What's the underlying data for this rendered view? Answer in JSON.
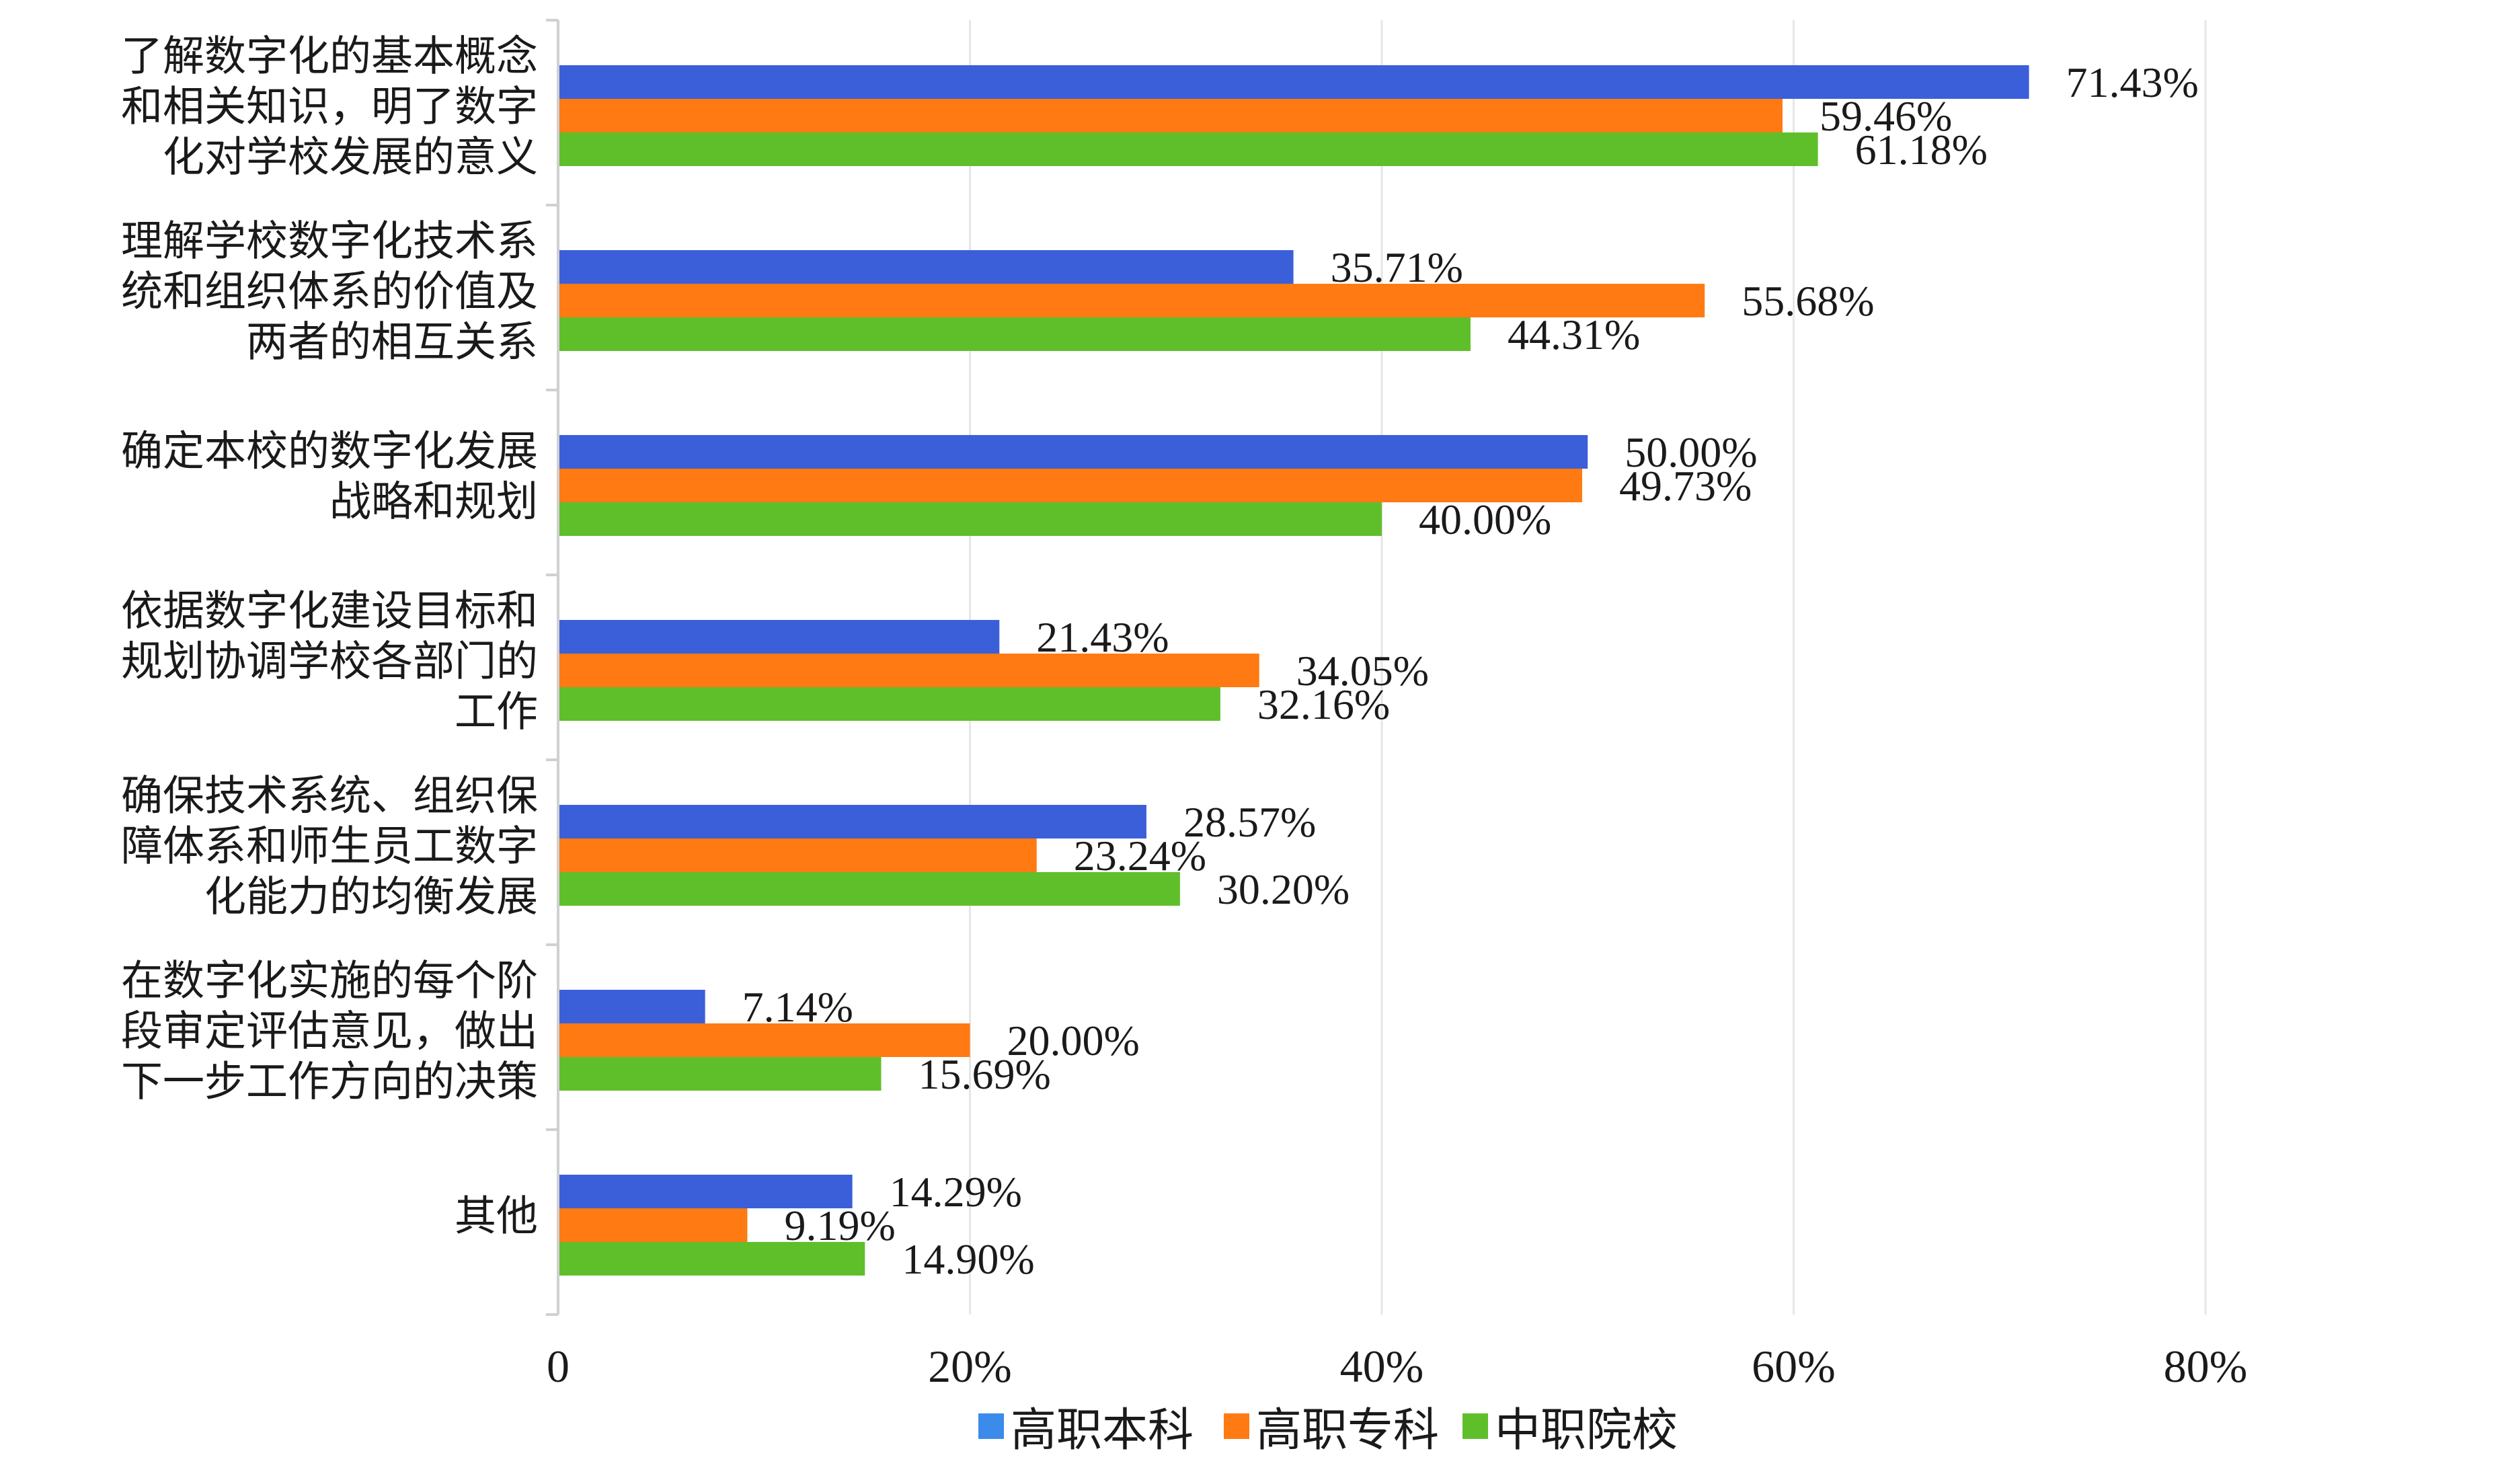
{
  "chart_data": {
    "type": "bar",
    "orientation": "horizontal",
    "categories": [
      [
        "了解数字化的基本概念",
        "和相关知识，明了数字",
        "化对学校发展的意义"
      ],
      [
        "理解学校数字化技术系",
        "统和组织体系的价值及",
        "两者的相互关系"
      ],
      [
        "确定本校的数字化发展",
        "战略和规划"
      ],
      [
        "依据数字化建设目标和",
        "规划协调学校各部门的",
        "工作"
      ],
      [
        "确保技术系统、组织保",
        "障体系和师生员工数字",
        "化能力的均衡发展"
      ],
      [
        "在数字化实施的每个阶",
        "段审定评估意见，做出",
        "下一步工作方向的决策"
      ],
      [
        "其他"
      ]
    ],
    "series": [
      {
        "name": "高职本科",
        "color": "#3b5fd9",
        "values": [
          71.43,
          35.71,
          50.0,
          21.43,
          28.57,
          7.14,
          14.29
        ],
        "labels": [
          "71.43%",
          "35.71%",
          "50.00%",
          "21.43%",
          "28.57%",
          "7.14%",
          "14.29%"
        ]
      },
      {
        "name": "高职专科",
        "color": "#ff7a12",
        "values": [
          59.46,
          55.68,
          49.73,
          34.05,
          23.24,
          20.0,
          9.19
        ],
        "labels": [
          "59.46%",
          "55.68%",
          "49.73%",
          "34.05%",
          "23.24%",
          "20.00%",
          "9.19%"
        ]
      },
      {
        "name": "中职院校",
        "color": "#5fbf2b",
        "values": [
          61.18,
          44.31,
          40.0,
          32.16,
          30.2,
          15.69,
          14.9
        ],
        "labels": [
          "61.18%",
          "44.31%",
          "40.00%",
          "32.16%",
          "30.20%",
          "15.69%",
          "14.90%"
        ]
      }
    ],
    "xlim": [
      0,
      80
    ],
    "xticks": [
      0,
      20,
      40,
      60,
      80
    ],
    "xtick_labels": [
      "0",
      "20%",
      "40%",
      "60%",
      "80%"
    ],
    "grid": true,
    "legend": {
      "placement": "bottom",
      "entries": [
        "高职本科",
        "高职专科",
        "中职院校"
      ],
      "colors": [
        "#3b8bea",
        "#ff7a12",
        "#5fbf2b"
      ]
    }
  }
}
